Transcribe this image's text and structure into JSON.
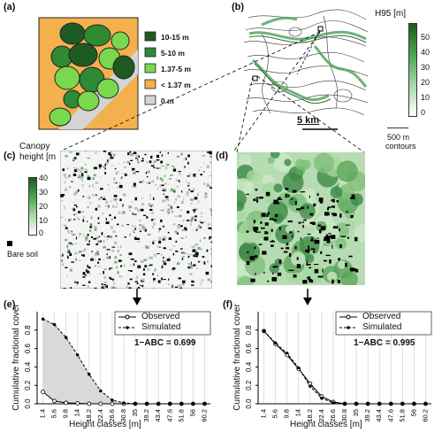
{
  "panels": {
    "a": {
      "label": "(a)",
      "legend": [
        {
          "text": "10-15 m",
          "color": "#1e5a24"
        },
        {
          "text": "5-10 m",
          "color": "#2f8a34"
        },
        {
          "text": "1.37-5 m",
          "color": "#79d84e"
        },
        {
          "text": "< 1.37 m",
          "color": "#f5b04e"
        },
        {
          "text": "0 m",
          "color": "#d4d4d4"
        }
      ]
    },
    "b": {
      "label": "(b)",
      "colorbar_title": "H95 [m]",
      "colorbar_ticks": [
        "50",
        "40",
        "30",
        "20",
        "10",
        "0"
      ],
      "scale_text": "5 km",
      "contour_line1": "500 m",
      "contour_line2": "contours"
    },
    "c": {
      "label": "(c)",
      "title_line1": "Canopy",
      "title_line2": "height [m",
      "colorbar_ticks": [
        "40",
        "30",
        "20",
        "10",
        "0"
      ],
      "bare_soil": "Bare soil"
    },
    "d": {
      "label": "(d)"
    },
    "e": {
      "label": "(e)",
      "abc_text": "1−ABC = 0.699"
    },
    "f": {
      "label": "(f)",
      "abc_text": "1−ABC = 0.995"
    }
  },
  "axes": {
    "ylabel": "Cumulative fractional cover",
    "xlabel": "Height classes [m]",
    "yticks": [
      "0.0",
      "0.2",
      "0.4",
      "0.6",
      "0.8"
    ],
    "legend_observed": "Observed",
    "legend_simulated": "Simulated"
  },
  "chart_data": [
    {
      "type": "line",
      "panel": "e",
      "x": [
        "1.4",
        "5.6",
        "9.8",
        "14",
        "18.2",
        "22.4",
        "26.6",
        "30.8",
        "35",
        "39.2",
        "43.4",
        "47.6",
        "51.8",
        "56",
        "60.2"
      ],
      "ylim": [
        0,
        1.0
      ],
      "series": [
        {
          "name": "Observed",
          "values": [
            0.13,
            0.03,
            0.01,
            0.005,
            0.0,
            0.0,
            0.0,
            0.0,
            0.0,
            0.0,
            0.0,
            0.0,
            0.0,
            0.0,
            0.0
          ]
        },
        {
          "name": "Simulated",
          "values": [
            0.92,
            0.86,
            0.72,
            0.53,
            0.32,
            0.14,
            0.04,
            0.01,
            0.0,
            0.0,
            0.0,
            0.0,
            0.0,
            0.0,
            0.0
          ]
        }
      ]
    },
    {
      "type": "line",
      "panel": "f",
      "x": [
        "1.4",
        "5.6",
        "9.8",
        "14",
        "18.2",
        "22.4",
        "26.6",
        "30.8",
        "35",
        "39.2",
        "43.4",
        "47.6",
        "51.8",
        "56",
        "60.2"
      ],
      "ylim": [
        0,
        1.0
      ],
      "series": [
        {
          "name": "Observed",
          "values": [
            0.79,
            0.65,
            0.53,
            0.38,
            0.22,
            0.08,
            0.02,
            0.0,
            0.0,
            0.0,
            0.0,
            0.0,
            0.0,
            0.0,
            0.0
          ]
        },
        {
          "name": "Simulated",
          "values": [
            0.79,
            0.66,
            0.55,
            0.39,
            0.19,
            0.06,
            0.01,
            0.0,
            0.0,
            0.0,
            0.0,
            0.0,
            0.0,
            0.0,
            0.0
          ]
        }
      ]
    }
  ]
}
